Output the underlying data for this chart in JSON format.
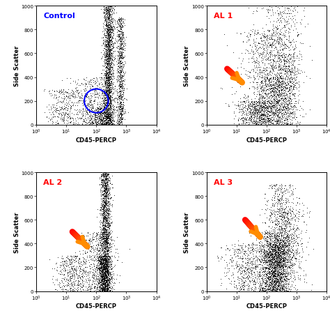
{
  "panels": [
    "Control",
    "AL 1",
    "AL 2",
    "AL 3"
  ],
  "label_colors": [
    "blue",
    "red",
    "red",
    "red"
  ],
  "xlabel": "CD45-PERCP",
  "ylabel": "Side Scatter",
  "yticks": [
    0,
    200,
    400,
    600,
    800,
    1000
  ],
  "seeds": [
    42,
    7,
    13,
    99
  ],
  "figsize": [
    4.74,
    4.6
  ],
  "dpi": 100
}
